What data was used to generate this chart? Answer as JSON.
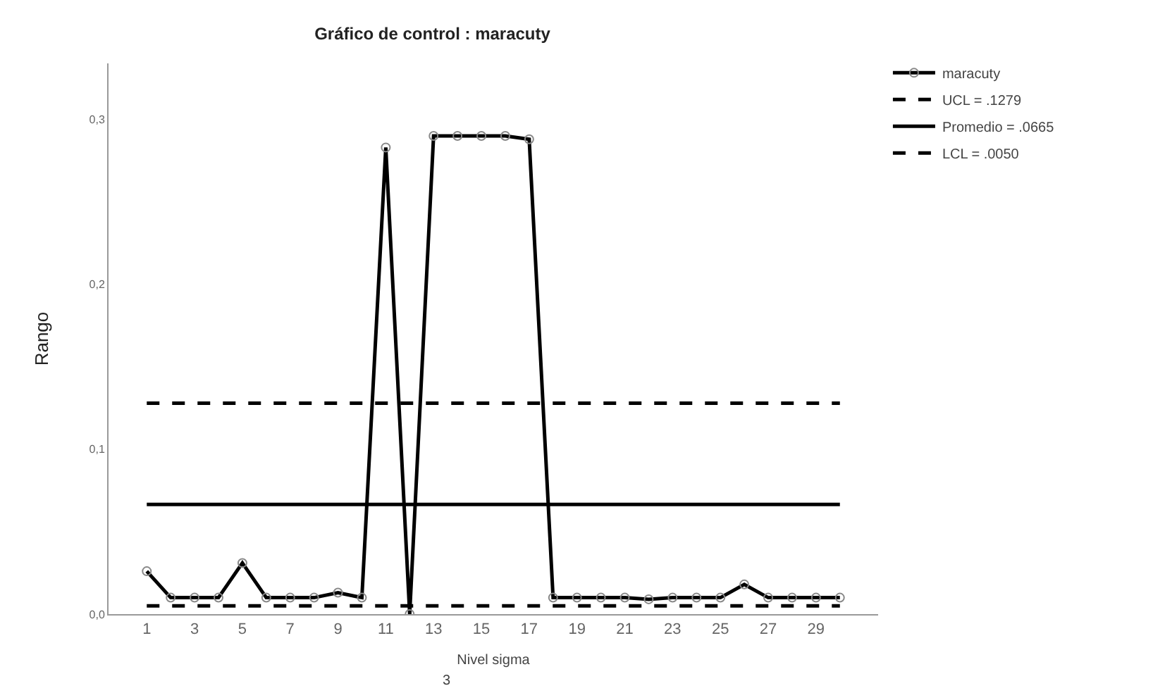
{
  "chart_data": {
    "type": "line",
    "title": "Gráfico de control : maracuty",
    "xlabel": "Nivel sigma",
    "ylabel": "Rango",
    "annotations": [
      "3"
    ],
    "x": [
      1,
      2,
      3,
      4,
      5,
      6,
      7,
      8,
      9,
      10,
      11,
      12,
      13,
      14,
      15,
      16,
      17,
      18,
      19,
      20,
      21,
      22,
      23,
      24,
      25,
      26,
      27,
      28,
      29,
      30
    ],
    "series": [
      {
        "name": "maracuty",
        "color": "#000000",
        "marker": "circle",
        "line_style": "solid",
        "values": [
          0.026,
          0.01,
          0.01,
          0.01,
          0.031,
          0.01,
          0.01,
          0.01,
          0.013,
          0.01,
          0.283,
          0.0,
          0.29,
          0.29,
          0.29,
          0.29,
          0.288,
          0.01,
          0.01,
          0.01,
          0.01,
          0.009,
          0.01,
          0.01,
          0.01,
          0.018,
          0.01,
          0.01,
          0.01,
          0.01
        ]
      }
    ],
    "ref_lines": [
      {
        "axis": "y",
        "value": 0.1279,
        "label": "UCL = .1279",
        "color": "#000000",
        "line_style": "dashed"
      },
      {
        "axis": "y",
        "value": 0.0665,
        "label": "Promedio = .0665",
        "color": "#000000",
        "line_style": "solid"
      },
      {
        "axis": "y",
        "value": 0.005,
        "label": "LCL = .0050",
        "color": "#000000",
        "line_style": "dashed"
      }
    ],
    "xlim": [
      -0.6,
      31.6
    ],
    "xticks": [
      1,
      3,
      5,
      7,
      9,
      11,
      13,
      15,
      17,
      19,
      21,
      23,
      25,
      27,
      29
    ],
    "ylim": [
      0,
      0.334
    ],
    "yticks": [
      {
        "value": 0,
        "label": "0,0"
      },
      {
        "value": 0.1,
        "label": "0,1"
      },
      {
        "value": 0.2,
        "label": "0,2"
      },
      {
        "value": 0.3,
        "label": "0,3"
      }
    ],
    "grid": false,
    "legend": "top right"
  }
}
